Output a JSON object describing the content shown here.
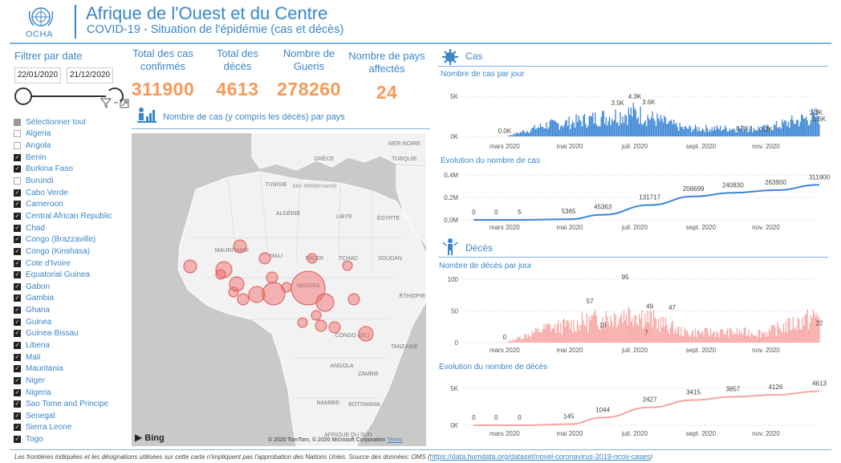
{
  "header": {
    "org": "OCHA",
    "title": "Afrique de l'Ouest et du Centre",
    "subtitle": "COVID-19 - Situation de l'épidémie (cas et décès)"
  },
  "filter": {
    "title": "Filtrer par date",
    "start_date": "22/01/2020",
    "end_date": "21/12/2020",
    "select_all": "Sélectionner tout",
    "countries": [
      {
        "name": "Algeria",
        "checked": false
      },
      {
        "name": "Angola",
        "checked": false
      },
      {
        "name": "Benin",
        "checked": true
      },
      {
        "name": "Burkina Faso",
        "checked": true
      },
      {
        "name": "Burundi",
        "checked": false
      },
      {
        "name": "Cabo Verde",
        "checked": true
      },
      {
        "name": "Cameroon",
        "checked": true
      },
      {
        "name": "Central African Republic",
        "checked": true
      },
      {
        "name": "Chad",
        "checked": true
      },
      {
        "name": "Congo (Brazzaville)",
        "checked": true
      },
      {
        "name": "Congo (Kinshasa)",
        "checked": true
      },
      {
        "name": "Cote d'Ivoire",
        "checked": true
      },
      {
        "name": "Equatorial Guinea",
        "checked": true
      },
      {
        "name": "Gabon",
        "checked": true
      },
      {
        "name": "Gambia",
        "checked": true
      },
      {
        "name": "Ghana",
        "checked": true
      },
      {
        "name": "Guinea",
        "checked": true
      },
      {
        "name": "Guinea-Bissau",
        "checked": true
      },
      {
        "name": "Liberia",
        "checked": true
      },
      {
        "name": "Mali",
        "checked": true
      },
      {
        "name": "Mauritania",
        "checked": true
      },
      {
        "name": "Niger",
        "checked": true
      },
      {
        "name": "Nigeria",
        "checked": true
      },
      {
        "name": "Sao Tome and Principe",
        "checked": true
      },
      {
        "name": "Senegal",
        "checked": true
      },
      {
        "name": "Sierra Leone",
        "checked": true
      },
      {
        "name": "Togo",
        "checked": true
      }
    ]
  },
  "kpis": [
    {
      "label": "Total des cas confirmés",
      "value": "311900"
    },
    {
      "label": "Total des décès",
      "value": "4613"
    },
    {
      "label": "Nombre de Gueris",
      "value": "278260"
    },
    {
      "label": "Nombre de pays affectés",
      "value": "24"
    }
  ],
  "map": {
    "title": "Nombre de cas (y compris les décès) par pays",
    "labels": [
      "MER NOIRE",
      "GRÈCE",
      "TURQUIE",
      "TUNISIE",
      "Mer Méditerranée",
      "ALGÉRIE",
      "LIBYE",
      "ÉGYPTE",
      "MAURITANIE",
      "MALI",
      "NIGER",
      "TCHAD",
      "SOUDAN",
      "NIGERIA",
      "CONGO (DC)",
      "ANGOLA",
      "ZAMBIE",
      "NAMIBIE",
      "BOTSWANA",
      "AFRIQUE DU SUD",
      "TANZANIE",
      "ÉTHIOPIE"
    ],
    "bing": "Bing",
    "attribution": "© 2020 TomTom, © 2020 Microsoft Corporation",
    "terms": "Terms"
  },
  "cas": {
    "section_title": "Cas",
    "daily_title": "Nombre de cas par jour",
    "evol_title": "Evolution du nombre de cas"
  },
  "deces": {
    "section_title": "Décès",
    "daily_title": "Nombre de décès par jour",
    "evol_title": "Evolution du nombre de décès"
  },
  "chart_data": [
    {
      "type": "bar",
      "title": "Nombre de cas par jour",
      "x_ticks": [
        "mars 2020",
        "mai 2020",
        "juil. 2020",
        "sept. 2020",
        "nov. 2020"
      ],
      "y_ticks": [
        "5K",
        "0K"
      ],
      "ylim": [
        0,
        5000
      ],
      "annotations": [
        {
          "label": "0.0K",
          "date": "2020-03-01",
          "value": 0
        },
        {
          "label": "3.5K",
          "date": "2020-06-15",
          "value": 3500
        },
        {
          "label": "4.3K",
          "date": "2020-07-01",
          "value": 4300
        },
        {
          "label": "3.6K",
          "date": "2020-07-14",
          "value": 3600
        },
        {
          "label": "0.3K",
          "date": "2020-10-10",
          "value": 300
        },
        {
          "label": "0.2K",
          "date": "2020-11-01",
          "value": 200
        },
        {
          "label": "2.3K",
          "date": "2020-12-18",
          "value": 2300
        },
        {
          "label": "1.5K",
          "date": "2020-12-21",
          "value": 1500
        }
      ],
      "color": "#3b86d6"
    },
    {
      "type": "line",
      "title": "Evolution du nombre de cas",
      "x_ticks": [
        "mars 2020",
        "mai 2020",
        "juil. 2020",
        "sept. 2020",
        "nov. 2020"
      ],
      "y_ticks": [
        "0,4M",
        "0,2M",
        "0,0M"
      ],
      "ylim": [
        0,
        400000
      ],
      "points": [
        {
          "date": "2020-02-01",
          "value": 0,
          "label": "0"
        },
        {
          "date": "2020-02-22",
          "value": 0,
          "label": "0"
        },
        {
          "date": "2020-03-15",
          "value": 5,
          "label": "5"
        },
        {
          "date": "2020-04-30",
          "value": 5365,
          "label": "5365"
        },
        {
          "date": "2020-06-01",
          "value": 45363,
          "label": "45363"
        },
        {
          "date": "2020-07-15",
          "value": 131717,
          "label": "131717"
        },
        {
          "date": "2020-08-25",
          "value": 208699,
          "label": "208699"
        },
        {
          "date": "2020-10-01",
          "value": 240830,
          "label": "240830"
        },
        {
          "date": "2020-11-10",
          "value": 263900,
          "label": "263900"
        },
        {
          "date": "2020-12-21",
          "value": 311900,
          "label": "311900"
        }
      ],
      "color": "#3b86d6"
    },
    {
      "type": "bar",
      "title": "Nombre de décès par jour",
      "x_ticks": [
        "mars 2020",
        "mai 2020",
        "juil. 2020",
        "sept. 2020",
        "nov. 2020"
      ],
      "y_ticks": [
        "100",
        "50",
        "0"
      ],
      "ylim": [
        0,
        100
      ],
      "annotations": [
        {
          "label": "0",
          "date": "2020-03-01",
          "value": 0
        },
        {
          "label": "57",
          "date": "2020-05-20",
          "value": 57
        },
        {
          "label": "19",
          "date": "2020-06-01",
          "value": 19
        },
        {
          "label": "95",
          "date": "2020-06-22",
          "value": 95
        },
        {
          "label": "7",
          "date": "2020-07-12",
          "value": 7
        },
        {
          "label": "49",
          "date": "2020-07-15",
          "value": 49
        },
        {
          "label": "47",
          "date": "2020-08-05",
          "value": 47
        },
        {
          "label": "22",
          "date": "2020-12-21",
          "value": 22
        }
      ],
      "color": "#f7a7a3"
    },
    {
      "type": "line",
      "title": "Evolution du nombre de décès",
      "x_ticks": [
        "mars 2020",
        "mai 2020",
        "juil. 2020",
        "sept. 2020",
        "nov. 2020"
      ],
      "y_ticks": [
        "5K",
        "0K"
      ],
      "ylim": [
        0,
        5000
      ],
      "points": [
        {
          "date": "2020-02-01",
          "value": 0,
          "label": "0"
        },
        {
          "date": "2020-02-22",
          "value": 0,
          "label": "0"
        },
        {
          "date": "2020-03-15",
          "value": 0,
          "label": "0"
        },
        {
          "date": "2020-04-30",
          "value": 145,
          "label": "145"
        },
        {
          "date": "2020-06-01",
          "value": 1044,
          "label": "1044"
        },
        {
          "date": "2020-07-15",
          "value": 2427,
          "label": "2427"
        },
        {
          "date": "2020-08-25",
          "value": 3415,
          "label": "3415"
        },
        {
          "date": "2020-10-01",
          "value": 3857,
          "label": "3857"
        },
        {
          "date": "2020-11-10",
          "value": 4126,
          "label": "4126"
        },
        {
          "date": "2020-12-21",
          "value": 4613,
          "label": "4613"
        }
      ],
      "color": "#f5a5a0"
    }
  ],
  "footer": {
    "text": "Les frontières indiquées et les désignations utilisées sur cette carte n'impliquent pas l'approbation des Nations Unies. Source des données: OMS (",
    "link": "https://data.humdata.org/dataset/novel-coronavirus-2019-ncov-cases",
    "close": ")"
  }
}
